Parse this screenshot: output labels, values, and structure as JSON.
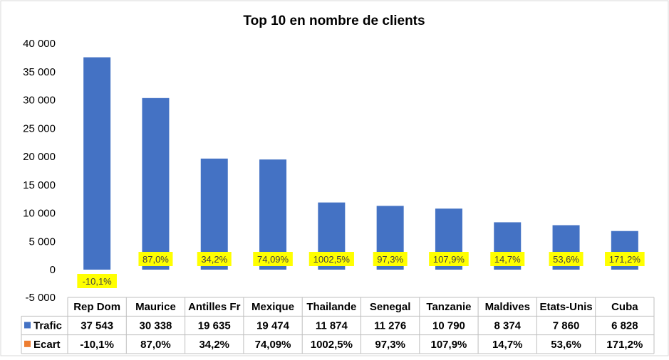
{
  "chart_data": {
    "type": "bar",
    "title": "Top 10 en nombre de clients",
    "categories": [
      "Rep Dom",
      "Maurice",
      "Antilles Fr",
      "Mexique",
      "Thailande",
      "Senegal",
      "Tanzanie",
      "Maldives",
      "Etats-Unis",
      "Cuba"
    ],
    "series": [
      {
        "name": "Trafic",
        "values": [
          37543,
          30338,
          19635,
          19474,
          11874,
          11276,
          10790,
          8374,
          7860,
          6828
        ],
        "display": [
          "37 543",
          "30 338",
          "19 635",
          "19 474",
          "11 874",
          "11 276",
          "10 790",
          "8 374",
          "7 860",
          "6 828"
        ],
        "color": "#4472c4"
      },
      {
        "name": "Ecart",
        "values": [
          -10.1,
          87.0,
          34.2,
          74.09,
          1002.5,
          97.3,
          107.9,
          14.7,
          53.6,
          171.2
        ],
        "display": [
          "-10,1%",
          "87,0%",
          "34,2%",
          "74,09%",
          "1002,5%",
          "97,3%",
          "107,9%",
          "14,7%",
          "53,6%",
          "171,2%"
        ],
        "color": "#ed7d31"
      }
    ],
    "ylim": [
      -5000,
      40000
    ],
    "yticks": [
      "40 000",
      "35 000",
      "30 000",
      "25 000",
      "20 000",
      "15 000",
      "10 000",
      "5 000",
      "0",
      "-5 000"
    ],
    "ytick_values": [
      40000,
      35000,
      30000,
      25000,
      20000,
      15000,
      10000,
      5000,
      0,
      -5000
    ],
    "label_highlight_color": "#ffff00",
    "grid": false,
    "legend": "data-table"
  }
}
